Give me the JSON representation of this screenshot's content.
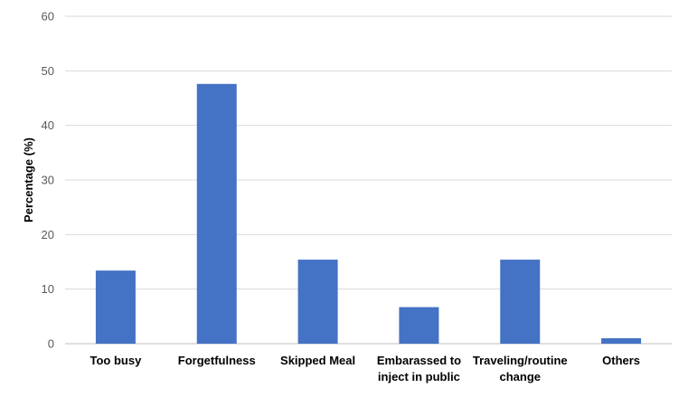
{
  "chart_data": {
    "type": "bar",
    "title": "",
    "xlabel": "",
    "ylabel": "Percentage (%)",
    "ylim": [
      0,
      60
    ],
    "yticks": [
      0,
      10,
      20,
      30,
      40,
      50,
      60
    ],
    "grid": true,
    "bar_color": "#4472c4",
    "categories": [
      [
        "Too busy"
      ],
      [
        "Forgetfulness"
      ],
      [
        "Skipped Meal"
      ],
      [
        "Embarassed to",
        "inject in public"
      ],
      [
        "Traveling/routine",
        "change"
      ],
      [
        "Others"
      ]
    ],
    "values": [
      13.4,
      47.6,
      15.4,
      6.7,
      15.4,
      1.0
    ]
  }
}
